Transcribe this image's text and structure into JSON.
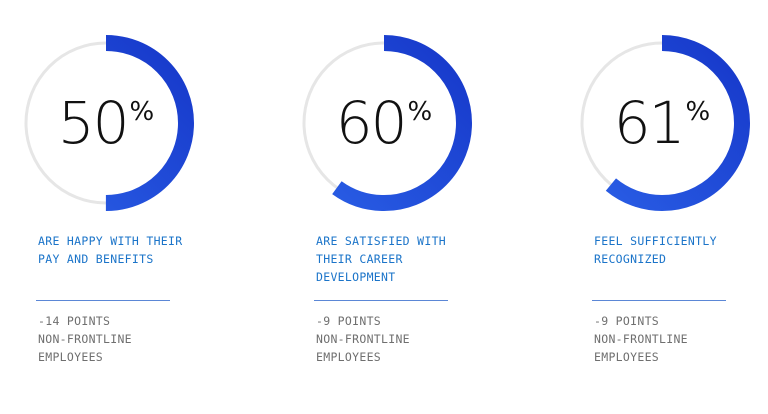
{
  "chart_data": [
    {
      "type": "pie",
      "value": 50,
      "max": 100,
      "label": "50",
      "unit": "%",
      "description": "ARE HAPPY WITH THEIR\nPAY AND BENEFITS",
      "change": "-14 POINTS",
      "comparison": "NON-FRONTLINE\nEMPLOYEES"
    },
    {
      "type": "pie",
      "value": 60,
      "max": 100,
      "label": "60",
      "unit": "%",
      "description": "ARE SATISFIED WITH\nTHEIR CAREER\nDEVELOPMENT",
      "change": "-9 POINTS",
      "comparison": "NON-FRONTLINE\nEMPLOYEES"
    },
    {
      "type": "pie",
      "value": 61,
      "max": 100,
      "label": "61",
      "unit": "%",
      "description": "FEEL SUFFICIENTLY\nRECOGNIZED",
      "change": "-9 POINTS",
      "comparison": "NON-FRONTLINE\nEMPLOYEES"
    }
  ],
  "colors": {
    "arc_start": "#2a5fe6",
    "arc_end": "#1637c9",
    "track": "#e6e6e6",
    "description_text": "#1b74c9",
    "rule": "#5b87d6",
    "footnote_text": "#6f6f6f",
    "value_text": "#111111"
  }
}
